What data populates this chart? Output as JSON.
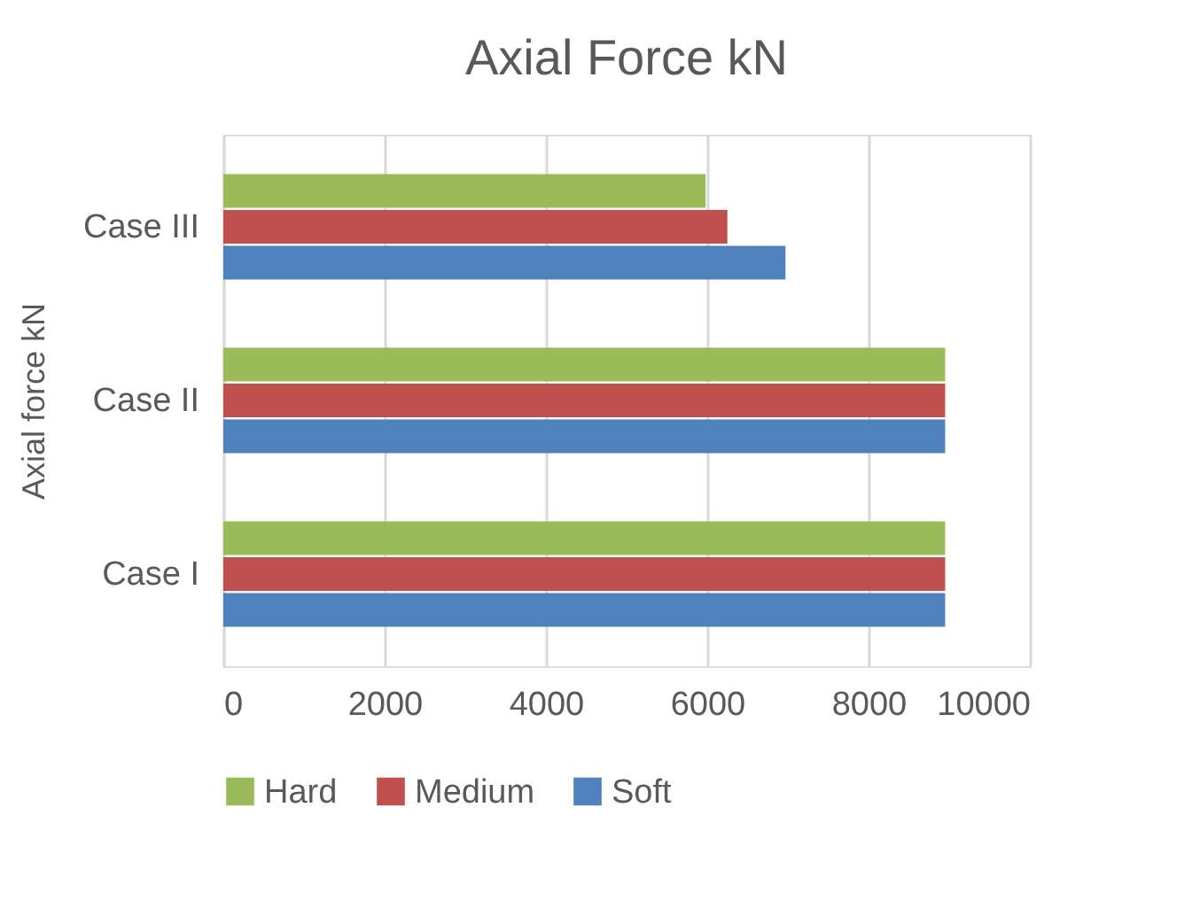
{
  "chart_data": {
    "type": "bar",
    "orientation": "horizontal",
    "title": "Axial Force kN",
    "ylabel": "Axial force kN",
    "categories": [
      "Case III",
      "Case II",
      "Case I"
    ],
    "series": [
      {
        "name": "Hard",
        "color": "#9bbb59",
        "values": [
          5980,
          8950,
          8950
        ]
      },
      {
        "name": "Medium",
        "color": "#c0504d",
        "values": [
          6250,
          8950,
          8950
        ]
      },
      {
        "name": "Soft",
        "color": "#4f81bd",
        "values": [
          6970,
          8950,
          8950
        ]
      }
    ],
    "xlim": [
      0,
      10000
    ],
    "xticks": [
      0,
      2000,
      4000,
      6000,
      8000,
      10000
    ],
    "grid": "x",
    "legend": "bottom"
  }
}
